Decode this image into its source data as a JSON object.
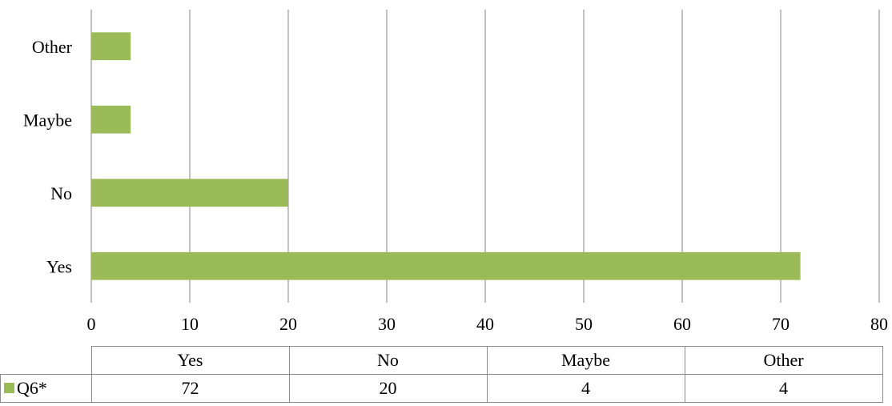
{
  "chart_data": {
    "type": "bar",
    "orientation": "horizontal",
    "categories": [
      "Yes",
      "No",
      "Maybe",
      "Other"
    ],
    "series": [
      {
        "name": "Q6*",
        "values": [
          72,
          20,
          4,
          4
        ],
        "color": "#9bbb59"
      }
    ],
    "xlim": [
      0,
      80
    ],
    "xticks": [
      0,
      10,
      20,
      30,
      40,
      50,
      60,
      70,
      80
    ],
    "grid": true,
    "legend": "data-table"
  },
  "table": {
    "headers": [
      "Yes",
      "No",
      "Maybe",
      "Other"
    ],
    "series_label": "Q6*",
    "values": [
      "72",
      "20",
      "4",
      "4"
    ]
  },
  "colors": {
    "bar": "#9bbb59",
    "gridline": "#868686"
  }
}
